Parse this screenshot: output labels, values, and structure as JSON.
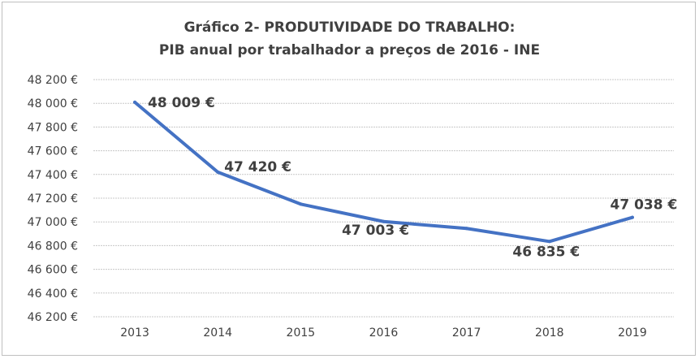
{
  "chart_data": {
    "type": "line",
    "title": "Gráfico 2- PRODUTIVIDADE DO TRABALHO:",
    "subtitle": "PIB anual por  trabalhador a preços de 2016 - INE",
    "xlabel": "",
    "ylabel": "",
    "categories": [
      "2013",
      "2014",
      "2015",
      "2016",
      "2017",
      "2018",
      "2019"
    ],
    "values": [
      48009,
      47420,
      47150,
      47003,
      46945,
      46835,
      47038
    ],
    "data_labels": [
      "48 009 €",
      "47 420 €",
      "",
      "47 003 €",
      "",
      "46 835 €",
      "47 038 €"
    ],
    "ylim": [
      46200,
      48200
    ],
    "yticks": [
      "46 200 €",
      "46 400 €",
      "46 600 €",
      "46 800 €",
      "47 000 €",
      "47 200 €",
      "47 400 €",
      "47 600 €",
      "47 800 €",
      "48 000 €",
      "48 200 €"
    ],
    "grid": true,
    "legend": "none",
    "line_color": "#4472c4"
  }
}
